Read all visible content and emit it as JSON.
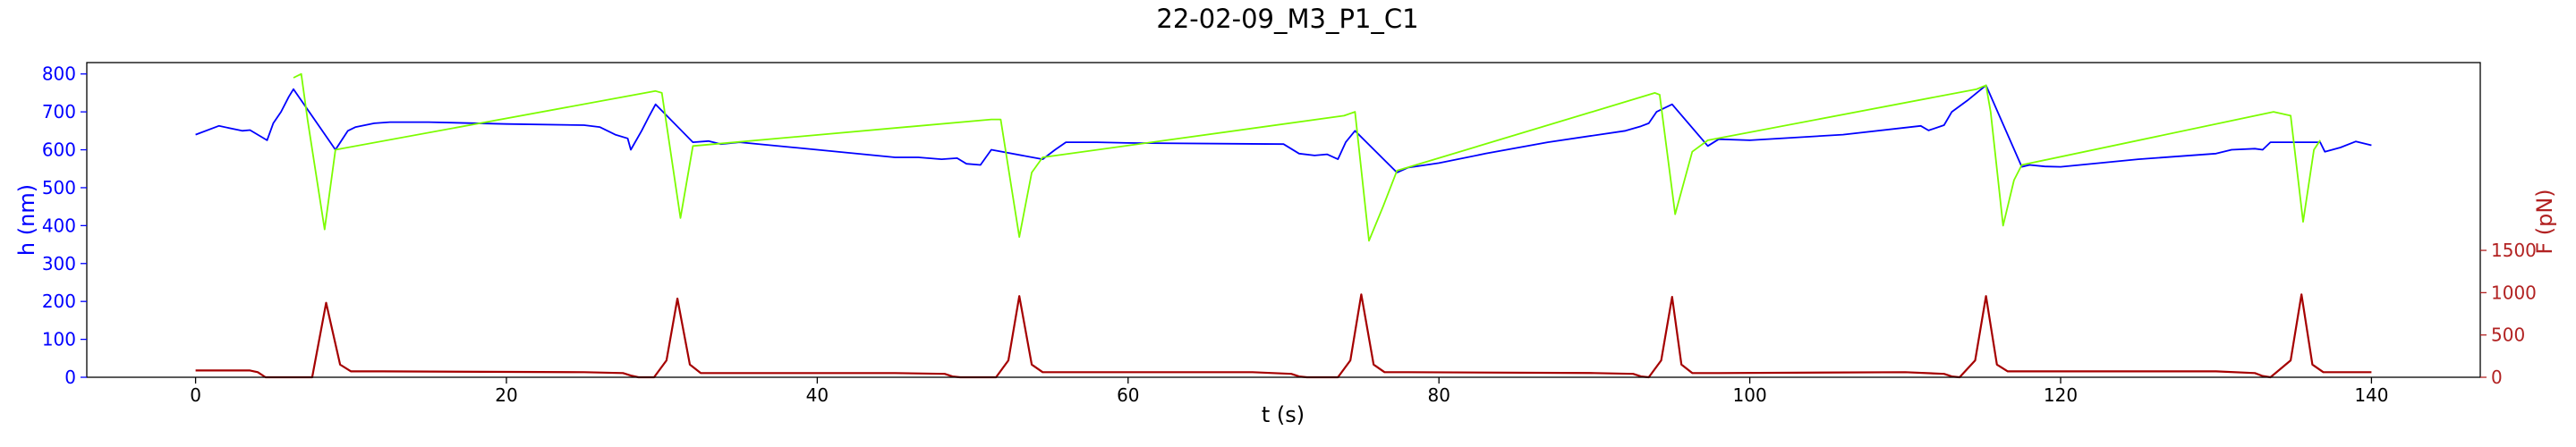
{
  "chart_data": {
    "type": "line",
    "title": "22-02-09_M3_P1_C1",
    "xlabel": "t (s)",
    "ylabel_left": "h (nm)",
    "ylabel_right": "F (pN)",
    "xlim": [
      -7,
      147
    ],
    "ylim_left": [
      0,
      830
    ],
    "ylim_right": [
      0,
      3720
    ],
    "x_ticks": [
      0,
      20,
      40,
      60,
      80,
      100,
      120,
      140
    ],
    "y_ticks_left": [
      0,
      100,
      200,
      300,
      400,
      500,
      600,
      700,
      800
    ],
    "y_ticks_right": [
      0,
      500,
      1000,
      1500
    ],
    "grid": false,
    "legend": "none",
    "colors": {
      "height_line": "#0000ff",
      "height_highlight": "#7cfc00",
      "force_line": "#a50000",
      "left_axis_text": "#0000ff",
      "right_axis_text": "#b22222",
      "frame": "#000000"
    },
    "series": [
      {
        "axis": "left",
        "color": "#0000ff",
        "x": [
          0,
          1.5,
          3,
          3.5,
          4.6,
          5.0,
          5.5,
          6.0,
          6.3,
          9.0,
          9.8,
          10.3,
          11.5,
          12.5,
          15,
          20,
          25,
          26,
          27,
          27.8,
          28,
          28.7,
          29.2,
          29.6,
          32,
          33,
          33.8,
          35,
          40,
          45,
          46.5,
          48,
          49.0,
          49.6,
          50.5,
          51.2,
          54.5,
          55.3,
          56.0,
          58.0,
          60,
          70,
          71.0,
          72,
          72.8,
          73.5,
          74.0,
          74.6,
          77.3,
          78.0,
          80.0,
          83.0,
          87.0,
          92.0,
          93.0,
          93.5,
          94.0,
          95.0,
          97.3,
          98.0,
          100,
          106,
          111,
          111.5,
          112.5,
          113,
          114,
          115.2,
          117.5,
          118,
          119,
          120,
          125,
          130,
          131,
          132.5,
          133.0,
          133.5,
          136.7,
          137.0,
          138,
          139,
          140
        ],
        "values": [
          640,
          663,
          650,
          652,
          625,
          670,
          700,
          740,
          760,
          600,
          650,
          660,
          670,
          673,
          673,
          668,
          665,
          660,
          640,
          630,
          600,
          650,
          690,
          720,
          620,
          623,
          615,
          620,
          600,
          580,
          580,
          575,
          578,
          563,
          560,
          600,
          575,
          600,
          620,
          620,
          618,
          615,
          590,
          585,
          588,
          575,
          620,
          650,
          540,
          553,
          565,
          590,
          620,
          650,
          662,
          670,
          700,
          720,
          610,
          628,
          625,
          640,
          663,
          651,
          665,
          700,
          730,
          770,
          555,
          560,
          556,
          555,
          575,
          590,
          600,
          603,
          600,
          620,
          620,
          595,
          606,
          622,
          612
        ]
      },
      {
        "axis": "left",
        "color": "#7cfc00",
        "x": [
          6.3,
          6.8,
          7.2,
          8.3,
          9.0,
          29.6,
          30.0,
          31.2,
          32.0,
          51.2,
          51.8,
          53.0,
          53.8,
          54.5,
          73.9,
          74.6,
          75.5,
          76.4,
          77.3,
          93.9,
          94.2,
          95.2,
          96.3,
          97.3,
          114.6,
          115.2,
          115.5,
          116.3,
          117.0,
          117.5,
          133.7,
          134.8,
          135.6,
          136.3,
          136.7
        ],
        "values": [
          790,
          800,
          680,
          390,
          600,
          755,
          750,
          420,
          610,
          680,
          680,
          370,
          540,
          580,
          690,
          700,
          360,
          450,
          545,
          750,
          745,
          430,
          595,
          625,
          760,
          770,
          700,
          400,
          520,
          560,
          700,
          690,
          410,
          600,
          625
        ]
      },
      {
        "axis": "right",
        "color": "#a50000",
        "x": [
          0,
          3.5,
          4.0,
          4.5,
          7.5,
          8.4,
          9.3,
          10.0,
          12,
          25,
          27.5,
          28.0,
          28.5,
          29.5,
          30.3,
          31.0,
          31.8,
          32.5,
          34,
          45,
          48.2,
          48.7,
          49.2,
          51.5,
          52.3,
          53.0,
          53.8,
          54.5,
          56,
          68,
          70.5,
          71.0,
          71.5,
          73.5,
          74.3,
          75.0,
          75.8,
          76.5,
          78,
          90,
          92.5,
          93.0,
          93.5,
          94.3,
          95.0,
          95.6,
          96.3,
          98,
          110,
          112.5,
          113.0,
          113.5,
          114.5,
          115.2,
          115.9,
          116.6,
          118,
          130,
          132.5,
          133.0,
          133.5,
          134.8,
          135.5,
          136.2,
          136.9,
          138,
          140
        ],
        "values": [
          80,
          80,
          60,
          0,
          0,
          880,
          150,
          70,
          70,
          60,
          50,
          20,
          0,
          0,
          200,
          930,
          150,
          50,
          50,
          50,
          40,
          10,
          0,
          0,
          200,
          960,
          150,
          60,
          60,
          60,
          40,
          10,
          0,
          0,
          200,
          980,
          150,
          60,
          60,
          50,
          40,
          10,
          0,
          200,
          950,
          150,
          50,
          50,
          60,
          40,
          10,
          0,
          200,
          960,
          150,
          70,
          70,
          70,
          50,
          15,
          0,
          200,
          980,
          150,
          60,
          60,
          60
        ]
      }
    ]
  }
}
